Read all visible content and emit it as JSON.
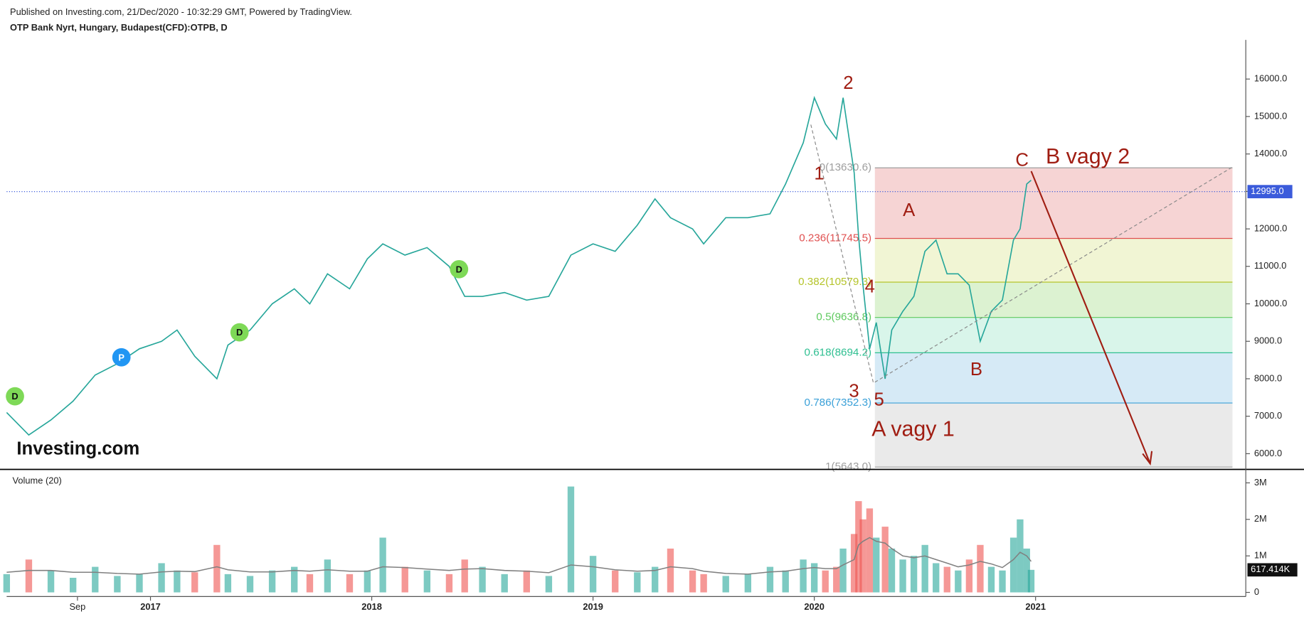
{
  "header": {
    "published": "Published on Investing.com, 21/Dec/2020 - 10:32:29 GMT, Powered by TradingView.",
    "symbol": "OTP Bank Nyrt, Hungary, Budapest(CFD):OTPB, D",
    "watermark": "Investing.com"
  },
  "chart_data": [
    {
      "type": "line",
      "x": [
        2016.35,
        2016.45,
        2016.55,
        2016.65,
        2016.75,
        2016.85,
        2016.95,
        2017.05,
        2017.12,
        2017.2,
        2017.3,
        2017.35,
        2017.45,
        2017.55,
        2017.65,
        2017.72,
        2017.8,
        2017.9,
        2017.98,
        2018.05,
        2018.15,
        2018.25,
        2018.35,
        2018.42,
        2018.5,
        2018.6,
        2018.7,
        2018.8,
        2018.9,
        2019.0,
        2019.1,
        2019.2,
        2019.28,
        2019.35,
        2019.45,
        2019.5,
        2019.6,
        2019.7,
        2019.8,
        2019.87,
        2019.95,
        2020.0,
        2020.05,
        2020.1,
        2020.13,
        2020.18,
        2020.2,
        2020.22,
        2020.25,
        2020.28,
        2020.32,
        2020.35,
        2020.4,
        2020.45,
        2020.5,
        2020.55,
        2020.6,
        2020.65,
        2020.7,
        2020.75,
        2020.8,
        2020.85,
        2020.9,
        2020.93,
        2020.96,
        2020.98
      ],
      "values": [
        7100,
        6500,
        6900,
        7400,
        8100,
        8400,
        8800,
        9000,
        9300,
        8600,
        8000,
        8900,
        9300,
        10000,
        10400,
        10000,
        10800,
        10400,
        11200,
        11600,
        11300,
        11500,
        11000,
        10200,
        10200,
        10300,
        10100,
        10200,
        11300,
        11600,
        11400,
        12100,
        12800,
        12300,
        12000,
        11600,
        12300,
        12300,
        12400,
        13200,
        14300,
        15500,
        14800,
        14400,
        15500,
        13500,
        11800,
        10500,
        8800,
        9500,
        8000,
        9300,
        9800,
        10200,
        11400,
        11700,
        10800,
        10800,
        10500,
        9000,
        9800,
        10100,
        11700,
        12000,
        13200,
        13300
      ],
      "up_color": "#26a69a",
      "down_color": "#ef5350",
      "xlim": [
        2016.35,
        2021.95
      ],
      "xticks": [
        {
          "value": 2016.67,
          "label": "Sep"
        },
        2017,
        2018,
        2019,
        2020,
        2021
      ],
      "ylim": [
        5580,
        17000
      ],
      "yticks": [
        {
          "value": 6000,
          "label": "6000.0"
        },
        {
          "value": 7000,
          "label": "7000.0"
        },
        {
          "value": 8000,
          "label": "8000.0"
        },
        {
          "value": 9000,
          "label": "9000.0"
        },
        {
          "value": 10000,
          "label": "10000.0"
        },
        {
          "value": 11000,
          "label": "11000.0"
        },
        {
          "value": 12000,
          "label": "12000.0"
        },
        {
          "value": 13000,
          "label": "13000.0"
        },
        {
          "value": 14000,
          "label": "14000.0"
        },
        {
          "value": 15000,
          "label": "15000.0"
        },
        {
          "value": 16000,
          "label": "16000.0"
        }
      ],
      "last_price": {
        "value": 12995,
        "label": "12995.0"
      },
      "fib_levels": [
        {
          "value": 13630.6,
          "label": "0(13630.6)",
          "color": "#9e9e9e",
          "fill": "#f4cccc"
        },
        {
          "value": 11745.5,
          "label": "0.236(11745.5)",
          "color": "#e05050",
          "fill": "#eef3cc"
        },
        {
          "value": 10579.3,
          "label": "0.382(10579.3)",
          "color": "#b5c42a",
          "fill": "#d6f0c9"
        },
        {
          "value": 9636.8,
          "label": "0.5(9636.8)",
          "color": "#5ec95e",
          "fill": "#d2f3e6"
        },
        {
          "value": 8694.2,
          "label": "0.618(8694.2)",
          "color": "#2fbf91",
          "fill": "#cfe6f4"
        },
        {
          "value": 7352.3,
          "label": "0.786(7352.3)",
          "color": "#3aa0d8",
          "fill": "#e6e6e6"
        },
        {
          "value": 5643.0,
          "label": "1(5643.0)",
          "color": "#9e9e9e",
          "fill": "#e6e6e6"
        }
      ],
      "annotations": [
        "2",
        "1",
        "3",
        "4",
        "5",
        "A",
        "B",
        "C",
        "B vagy 2",
        "A vagy 1"
      ],
      "events": [
        {
          "label": "D",
          "color": "#7ed957"
        },
        {
          "label": "P",
          "color": "#2196f3"
        },
        {
          "label": "D",
          "color": "#7ed957"
        },
        {
          "label": "D",
          "color": "#7ed957"
        }
      ]
    },
    {
      "type": "bar",
      "title": "Volume (20)",
      "values": [
        500000,
        900000,
        600000,
        400000,
        700000,
        450000,
        500000,
        800000,
        600000,
        550000,
        1300000,
        500000,
        450000,
        600000,
        700000,
        500000,
        900000,
        500000,
        600000,
        1500000,
        700000,
        600000,
        500000,
        900000,
        700000,
        500000,
        600000,
        450000,
        2900000,
        1000000,
        600000,
        550000,
        700000,
        1200000,
        600000,
        500000,
        450000,
        500000,
        700000,
        600000,
        900000,
        800000,
        600000,
        700000,
        1200000,
        1600000,
        2500000,
        2000000,
        2300000,
        1500000,
        1800000,
        1200000,
        900000,
        1000000,
        1300000,
        800000,
        700000,
        600000,
        900000,
        1300000,
        700000,
        600000,
        1500000,
        2000000,
        1200000,
        617414
      ],
      "ma": [
        550000,
        600000,
        600000,
        550000,
        550000,
        520000,
        500000,
        560000,
        580000,
        570000,
        700000,
        620000,
        560000,
        560000,
        600000,
        580000,
        620000,
        580000,
        580000,
        700000,
        680000,
        640000,
        600000,
        640000,
        650000,
        600000,
        580000,
        540000,
        750000,
        700000,
        620000,
        580000,
        600000,
        700000,
        650000,
        580000,
        520000,
        500000,
        560000,
        580000,
        650000,
        680000,
        650000,
        650000,
        750000,
        900000,
        1300000,
        1400000,
        1500000,
        1400000,
        1350000,
        1200000,
        1000000,
        950000,
        1000000,
        900000,
        800000,
        700000,
        750000,
        850000,
        780000,
        680000,
        900000,
        1100000,
        1000000,
        850000
      ],
      "ma_color": "#808080",
      "ylim": [
        0,
        3300000
      ],
      "yticks": [
        0,
        {
          "value": 1000000,
          "label": "1M"
        },
        {
          "value": 2000000,
          "label": "2M"
        },
        {
          "value": 3000000,
          "label": "3M"
        }
      ],
      "last_value": {
        "value": 617414,
        "label": "617.414K"
      }
    }
  ]
}
